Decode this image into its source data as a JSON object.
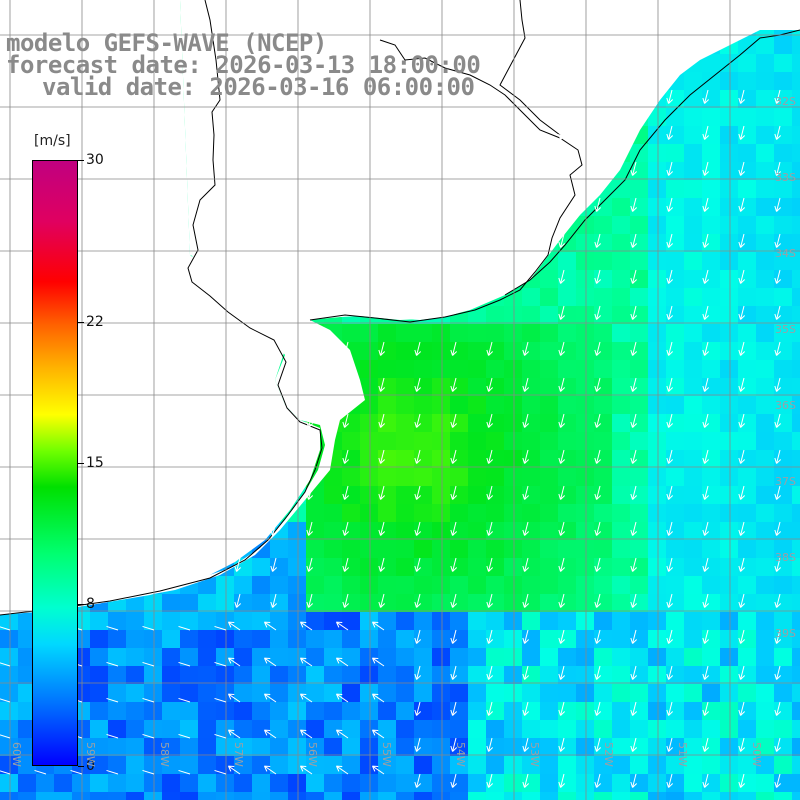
{
  "header": {
    "title_line_1": "modelo GEFS-WAVE (NCEP)",
    "title_line_2": "forecast date: 2026-03-13 18:00:00",
    "title_line_3": "valid date: 2026-03-16 06:00:00"
  },
  "colorbar": {
    "unit": "[m/s]",
    "ticks": [
      {
        "value": 30,
        "label": "30"
      },
      {
        "value": 22,
        "label": "22"
      },
      {
        "value": 15,
        "label": "15"
      },
      {
        "value": 8,
        "label": "8"
      },
      {
        "value": 0,
        "label": "0"
      }
    ],
    "range": [
      0,
      30
    ]
  },
  "map": {
    "field": "wind speed with direction arrows",
    "land_color": "#ffffff",
    "coastline_color": "#000000",
    "grid_color": "#888888",
    "arrow_color": "#ffffff",
    "dominant_wind_direction": "from north-northeast",
    "lat_labels": [
      "32S",
      "33S",
      "34S",
      "35S",
      "36S",
      "37S",
      "38S",
      "39S"
    ],
    "lon_labels": [
      "60W",
      "59W",
      "58W",
      "57W",
      "56W",
      "55W",
      "54W",
      "53W",
      "52W",
      "51W",
      "50W"
    ]
  }
}
